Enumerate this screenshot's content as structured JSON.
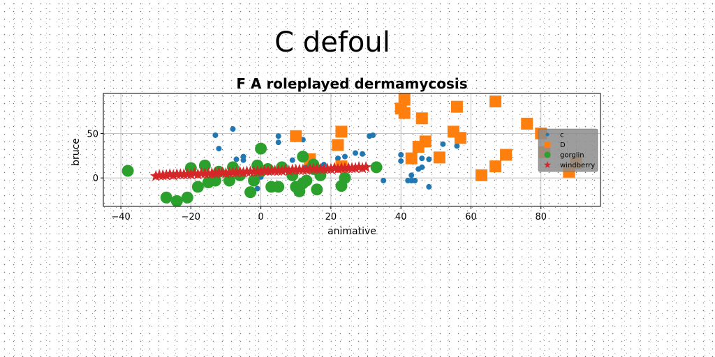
{
  "figure": {
    "suptitle": "C defoul"
  },
  "chart_data": {
    "type": "scatter",
    "title": "F A roleplayed dermamycosis",
    "xlabel": "animative",
    "ylabel": "bruce",
    "xlim": [
      -45,
      97
    ],
    "ylim": [
      -32,
      95
    ],
    "xticks": [
      -40,
      -20,
      0,
      20,
      40,
      60,
      80
    ],
    "yticks": [
      0,
      50
    ],
    "grid": true,
    "legend_position": "right",
    "series": [
      {
        "name": "c",
        "marker": "circle",
        "size": "small",
        "color": "#1f77b4",
        "points": [
          [
            -13,
            48
          ],
          [
            -12,
            33
          ],
          [
            -8,
            55
          ],
          [
            -7,
            21
          ],
          [
            -5,
            20
          ],
          [
            -5,
            24
          ],
          [
            -1,
            -12
          ],
          [
            0,
            1
          ],
          [
            5,
            40
          ],
          [
            5,
            47
          ],
          [
            9,
            20
          ],
          [
            12,
            43
          ],
          [
            13,
            13
          ],
          [
            14,
            10
          ],
          [
            17,
            12
          ],
          [
            18,
            15
          ],
          [
            22,
            22
          ],
          [
            24,
            24
          ],
          [
            27,
            28
          ],
          [
            29,
            27
          ],
          [
            31,
            47
          ],
          [
            32,
            48
          ],
          [
            35,
            -3
          ],
          [
            40,
            19
          ],
          [
            40,
            26
          ],
          [
            42,
            -3
          ],
          [
            43,
            -3
          ],
          [
            43,
            3
          ],
          [
            44,
            -3
          ],
          [
            45,
            10
          ],
          [
            46,
            22
          ],
          [
            46,
            12
          ],
          [
            48,
            21
          ],
          [
            48,
            -10
          ],
          [
            52,
            38
          ],
          [
            56,
            36
          ]
        ]
      },
      {
        "name": "D",
        "marker": "square",
        "size": "large",
        "color": "#ff7f0e",
        "points": [
          [
            10,
            47
          ],
          [
            14,
            21
          ],
          [
            22,
            37
          ],
          [
            23,
            52
          ],
          [
            23,
            13
          ],
          [
            40,
            78
          ],
          [
            41,
            88
          ],
          [
            41,
            73
          ],
          [
            43,
            22
          ],
          [
            45,
            35
          ],
          [
            46,
            67
          ],
          [
            47,
            41
          ],
          [
            51,
            23
          ],
          [
            55,
            52
          ],
          [
            56,
            80
          ],
          [
            57,
            45
          ],
          [
            63,
            3
          ],
          [
            67,
            86
          ],
          [
            67,
            13
          ],
          [
            70,
            26
          ],
          [
            76,
            61
          ],
          [
            80,
            50
          ],
          [
            81,
            29
          ],
          [
            88,
            7
          ],
          [
            90,
            17
          ]
        ]
      },
      {
        "name": "gorglin",
        "marker": "circle",
        "size": "large",
        "color": "#2ca02c",
        "points": [
          [
            -38,
            8
          ],
          [
            -27,
            -22
          ],
          [
            -24,
            -26
          ],
          [
            -21,
            -22
          ],
          [
            -20,
            11
          ],
          [
            -18,
            -10
          ],
          [
            -16,
            14
          ],
          [
            -15,
            -5
          ],
          [
            -13,
            -3
          ],
          [
            -12,
            7
          ],
          [
            -9,
            -3
          ],
          [
            -8,
            12
          ],
          [
            -6,
            3
          ],
          [
            -3,
            -16
          ],
          [
            -2,
            -3
          ],
          [
            -1,
            14
          ],
          [
            0,
            33
          ],
          [
            0,
            8
          ],
          [
            2,
            10
          ],
          [
            3,
            -10
          ],
          [
            5,
            -10
          ],
          [
            6,
            12
          ],
          [
            9,
            3
          ],
          [
            10,
            -10
          ],
          [
            11,
            -15
          ],
          [
            12,
            24
          ],
          [
            12,
            -6
          ],
          [
            13,
            -3
          ],
          [
            15,
            10
          ],
          [
            15,
            15
          ],
          [
            16,
            -13
          ],
          [
            17,
            3
          ],
          [
            23,
            -9
          ],
          [
            24,
            0
          ],
          [
            33,
            12
          ]
        ]
      },
      {
        "name": "windberry",
        "marker": "star",
        "size": "large",
        "color": "#d62728",
        "points": [
          [
            -30,
            2
          ],
          [
            -29,
            3
          ],
          [
            -28,
            3
          ],
          [
            -27,
            3
          ],
          [
            -26,
            4
          ],
          [
            -25,
            3
          ],
          [
            -24,
            4
          ],
          [
            -23,
            4
          ],
          [
            -22,
            4
          ],
          [
            -21,
            4
          ],
          [
            -20,
            4
          ],
          [
            -19,
            5
          ],
          [
            -18,
            4
          ],
          [
            -17,
            5
          ],
          [
            -16,
            5
          ],
          [
            -15,
            5
          ],
          [
            -14,
            5
          ],
          [
            -13,
            5
          ],
          [
            -12,
            6
          ],
          [
            -11,
            6
          ],
          [
            -10,
            5
          ],
          [
            -9,
            6
          ],
          [
            -8,
            6
          ],
          [
            -7,
            6
          ],
          [
            -6,
            7
          ],
          [
            -5,
            6
          ],
          [
            -4,
            7
          ],
          [
            -3,
            7
          ],
          [
            -2,
            7
          ],
          [
            -1,
            7
          ],
          [
            0,
            7
          ],
          [
            1,
            8
          ],
          [
            2,
            8
          ],
          [
            3,
            8
          ],
          [
            4,
            8
          ],
          [
            5,
            8
          ],
          [
            6,
            8
          ],
          [
            7,
            9
          ],
          [
            8,
            8
          ],
          [
            9,
            9
          ],
          [
            10,
            9
          ],
          [
            11,
            9
          ],
          [
            12,
            9
          ],
          [
            13,
            9
          ],
          [
            14,
            10
          ],
          [
            15,
            10
          ],
          [
            16,
            10
          ],
          [
            17,
            10
          ],
          [
            18,
            10
          ],
          [
            19,
            10
          ],
          [
            20,
            10
          ],
          [
            21,
            11
          ],
          [
            22,
            10
          ],
          [
            23,
            11
          ],
          [
            24,
            11
          ],
          [
            25,
            11
          ],
          [
            26,
            11
          ],
          [
            27,
            11
          ],
          [
            28,
            12
          ],
          [
            29,
            11
          ],
          [
            30,
            12
          ]
        ]
      }
    ]
  }
}
